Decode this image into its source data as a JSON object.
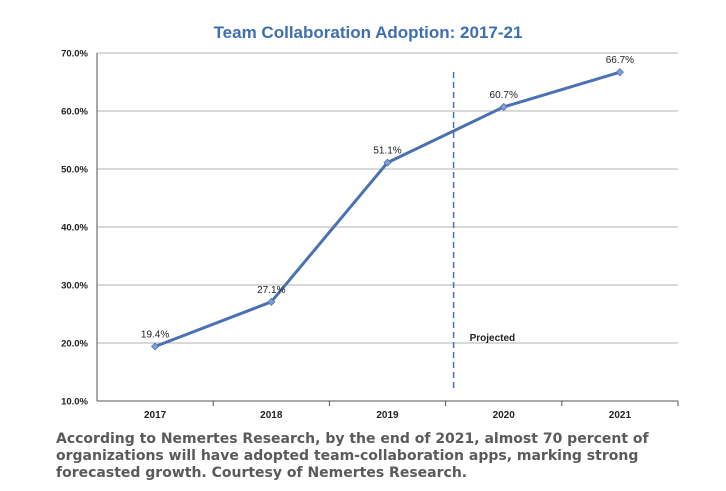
{
  "chart_data": {
    "type": "line",
    "title": "Team Collaboration Adoption: 2017-21",
    "categories": [
      "2017",
      "2018",
      "2019",
      "2020",
      "2021"
    ],
    "series": [
      {
        "values": [
          19.4,
          27.1,
          51.1,
          60.7,
          66.7
        ]
      }
    ],
    "data_labels": [
      "19.4%",
      "27.1%",
      "51.1%",
      "60.7%",
      "66.7%"
    ],
    "ylim": [
      10,
      70
    ],
    "yticks": [
      "10.0%",
      "20.0%",
      "30.0%",
      "40.0%",
      "50.0%",
      "60.0%",
      "70.0%"
    ],
    "grid": true,
    "line_color": "#4a72b0",
    "title_color": "#3e6fae",
    "annotation": {
      "text": "Projected",
      "divider_after_category": "2019"
    }
  },
  "caption": "According to Nemertes Research, by the end of 2021, almost 70 percent of organizations will have adopted team-collaboration apps, marking strong forecasted growth. Courtesy of Nemertes Research."
}
